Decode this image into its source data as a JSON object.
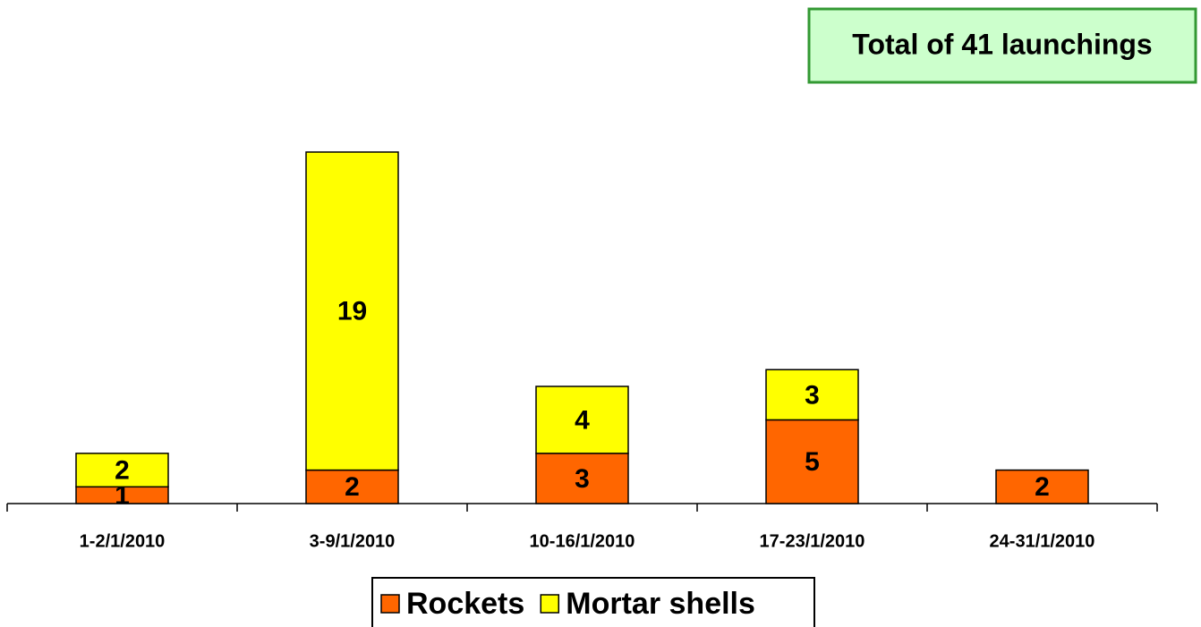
{
  "chart_data": {
    "type": "bar",
    "stacked": true,
    "annotation": "Total of 41 launchings",
    "categories": [
      "1-2/1/2010",
      "3-9/1/2010",
      "10-16/1/2010",
      "17-23/1/2010",
      "24-31/1/2010"
    ],
    "series": [
      {
        "name": "Rockets",
        "color": "#ff6600",
        "values": [
          1,
          2,
          3,
          5,
          2
        ]
      },
      {
        "name": "Mortar shells",
        "color": "#ffff00",
        "values": [
          2,
          19,
          4,
          3,
          0
        ]
      }
    ],
    "ylim": [
      0,
      21
    ],
    "legend": "bottom"
  }
}
